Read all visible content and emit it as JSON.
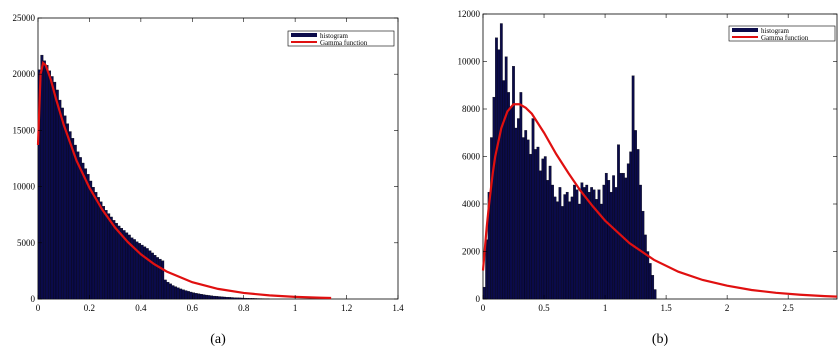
{
  "chart_data": [
    {
      "type": "bar",
      "subplot_label": "(a)",
      "xlim": [
        0,
        1.4
      ],
      "ylim": [
        0,
        25000
      ],
      "xticks": [
        "0",
        "0.2",
        "0.4",
        "0.6",
        "0.8",
        "1",
        "1.2",
        "1.4"
      ],
      "yticks": [
        "0",
        "5000",
        "10000",
        "15000",
        "20000",
        "25000"
      ],
      "legend": [
        "histogram",
        "Gamma function"
      ],
      "legend_position": "top-right",
      "colors": {
        "bars": "#0b0b4a",
        "curve": "#e01010"
      },
      "series": [
        {
          "name": "histogram",
          "type": "bar",
          "bin_width": 0.01,
          "x": [
            0.005,
            0.015,
            0.025,
            0.035,
            0.045,
            0.055,
            0.065,
            0.075,
            0.085,
            0.095,
            0.105,
            0.115,
            0.125,
            0.135,
            0.145,
            0.155,
            0.165,
            0.175,
            0.185,
            0.195,
            0.205,
            0.215,
            0.225,
            0.235,
            0.245,
            0.255,
            0.265,
            0.275,
            0.285,
            0.295,
            0.305,
            0.315,
            0.325,
            0.335,
            0.345,
            0.355,
            0.365,
            0.375,
            0.385,
            0.395,
            0.405,
            0.415,
            0.425,
            0.435,
            0.445,
            0.455,
            0.465,
            0.475,
            0.485,
            0.495,
            0.505,
            0.515,
            0.525,
            0.535,
            0.545,
            0.555,
            0.565,
            0.575,
            0.585,
            0.595,
            0.605,
            0.615,
            0.625,
            0.635,
            0.645,
            0.655,
            0.665,
            0.675,
            0.685,
            0.695,
            0.705,
            0.715,
            0.725,
            0.735,
            0.745,
            0.755,
            0.765,
            0.775,
            0.785,
            0.795,
            0.805,
            0.815,
            0.825,
            0.835,
            0.845,
            0.855,
            0.865,
            0.875,
            0.885,
            0.895
          ],
          "values": [
            20400,
            21700,
            21200,
            20800,
            20300,
            19800,
            19300,
            18600,
            17700,
            17000,
            16300,
            15600,
            14900,
            14300,
            13700,
            13100,
            12600,
            12100,
            11600,
            11100,
            10500,
            9950,
            9500,
            9050,
            8650,
            8250,
            7900,
            7600,
            7300,
            7000,
            6750,
            6500,
            6300,
            6100,
            5900,
            5700,
            5450,
            5300,
            5100,
            4950,
            4800,
            4650,
            4500,
            4300,
            4100,
            3900,
            3700,
            3550,
            3400,
            1700,
            1500,
            1350,
            1200,
            1100,
            1000,
            900,
            820,
            750,
            680,
            620,
            560,
            510,
            470,
            430,
            390,
            350,
            320,
            290,
            260,
            240,
            220,
            200,
            180,
            165,
            150,
            135,
            120,
            110,
            100,
            90,
            80,
            72,
            65,
            58,
            52,
            46,
            40,
            35,
            30,
            25
          ]
        },
        {
          "name": "Gamma function",
          "type": "line",
          "x": [
            0.0,
            0.01,
            0.02,
            0.03,
            0.05,
            0.07,
            0.1,
            0.15,
            0.2,
            0.25,
            0.3,
            0.35,
            0.4,
            0.45,
            0.5,
            0.6,
            0.7,
            0.8,
            0.9,
            1.0,
            1.1,
            1.14
          ],
          "values": [
            13700,
            20000,
            21000,
            20800,
            19500,
            17800,
            15500,
            12300,
            9900,
            7950,
            6350,
            5050,
            3980,
            3130,
            2450,
            1490,
            900,
            540,
            320,
            190,
            110,
            90
          ]
        }
      ]
    },
    {
      "type": "bar",
      "subplot_label": "(b)",
      "xlim": [
        0,
        2.9
      ],
      "ylim": [
        0,
        12000
      ],
      "xticks": [
        "0",
        "0.5",
        "1",
        "1.5",
        "2",
        "2.5"
      ],
      "yticks": [
        "0",
        "2000",
        "4000",
        "6000",
        "8000",
        "10000",
        "12000"
      ],
      "legend": [
        "histogram",
        "Gamma function"
      ],
      "legend_position": "top-right",
      "colors": {
        "bars": "#0b0b4a",
        "curve": "#e01010"
      },
      "series": [
        {
          "name": "histogram",
          "type": "bar",
          "bin_width": 0.02,
          "x": [
            0.01,
            0.03,
            0.05,
            0.07,
            0.09,
            0.11,
            0.13,
            0.15,
            0.17,
            0.19,
            0.21,
            0.23,
            0.25,
            0.27,
            0.29,
            0.31,
            0.33,
            0.35,
            0.37,
            0.39,
            0.41,
            0.43,
            0.45,
            0.47,
            0.49,
            0.51,
            0.53,
            0.55,
            0.57,
            0.59,
            0.61,
            0.63,
            0.65,
            0.67,
            0.69,
            0.71,
            0.73,
            0.75,
            0.77,
            0.79,
            0.81,
            0.83,
            0.85,
            0.87,
            0.89,
            0.91,
            0.93,
            0.95,
            0.97,
            0.99,
            1.01,
            1.03,
            1.05,
            1.07,
            1.09,
            1.11,
            1.13,
            1.15,
            1.17,
            1.19,
            1.21,
            1.23,
            1.25,
            1.27,
            1.29,
            1.31,
            1.33,
            1.35,
            1.37,
            1.39,
            1.41
          ],
          "values": [
            500,
            2500,
            4500,
            6800,
            8500,
            11000,
            10500,
            11600,
            9200,
            10200,
            8700,
            8100,
            9800,
            7200,
            7600,
            8700,
            6800,
            7100,
            6700,
            6100,
            7600,
            6300,
            6400,
            5400,
            5900,
            6000,
            5000,
            5600,
            4800,
            4300,
            4100,
            4700,
            3900,
            4400,
            4500,
            4100,
            4300,
            4800,
            4600,
            4000,
            4900,
            4700,
            4800,
            4500,
            4700,
            4600,
            4200,
            4600,
            4000,
            4800,
            5300,
            5000,
            4500,
            5200,
            4700,
            6500,
            5300,
            5300,
            5100,
            5700,
            6200,
            9400,
            7100,
            6300,
            4800,
            3700,
            2700,
            2000,
            1500,
            1000,
            400
          ]
        },
        {
          "name": "Gamma function",
          "type": "line",
          "x": [
            0.0,
            0.03,
            0.05,
            0.08,
            0.1,
            0.15,
            0.2,
            0.25,
            0.3,
            0.35,
            0.4,
            0.5,
            0.6,
            0.7,
            0.8,
            0.9,
            1.0,
            1.2,
            1.4,
            1.6,
            1.8,
            2.0,
            2.2,
            2.4,
            2.6,
            2.8,
            2.9
          ],
          "values": [
            1200,
            3000,
            4000,
            5300,
            6000,
            7200,
            7900,
            8200,
            8200,
            8050,
            7800,
            7000,
            6100,
            5300,
            4550,
            3900,
            3300,
            2350,
            1650,
            1150,
            800,
            560,
            380,
            260,
            180,
            120,
            100
          ]
        }
      ]
    }
  ]
}
